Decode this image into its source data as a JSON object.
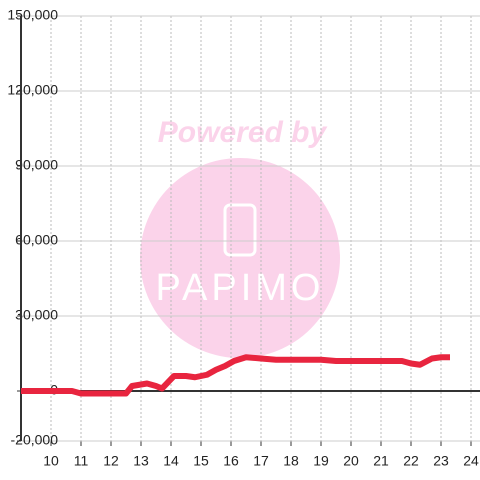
{
  "chart_data": {
    "type": "line",
    "x": [
      9,
      10.7,
      11,
      12.5,
      12.7,
      13.2,
      13.5,
      13.7,
      14.1,
      14.5,
      14.8,
      15.2,
      15.5,
      15.8,
      16.1,
      16.5,
      17,
      17.5,
      18,
      19,
      19.5,
      20,
      21,
      21.7,
      22,
      22.3,
      22.7,
      23,
      23.3
    ],
    "values": [
      0,
      0,
      -1000,
      -1000,
      2000,
      3000,
      2000,
      1000,
      6000,
      6000,
      5500,
      6500,
      8500,
      10000,
      12000,
      13500,
      13000,
      12500,
      12500,
      12500,
      12000,
      12000,
      12000,
      12000,
      11000,
      10500,
      13000,
      13500,
      13500
    ],
    "color": "#e8253f",
    "xlim": [
      9,
      24.3
    ],
    "xticks": [
      10,
      11,
      12,
      13,
      14,
      15,
      16,
      17,
      18,
      19,
      20,
      21,
      22,
      23,
      24
    ],
    "ylim": [
      -20000,
      150000
    ],
    "yticks": [
      {
        "value": -20000,
        "label": "-20,000"
      },
      0,
      {
        "value": 30000,
        "label": "30,000"
      },
      {
        "value": 60000,
        "label": "60,000"
      },
      {
        "value": 90000,
        "label": "90,000"
      },
      {
        "value": 120000,
        "label": "120,000"
      },
      {
        "value": 150000,
        "label": "150,000"
      }
    ],
    "grid": true,
    "watermark": {
      "text": "Powered by",
      "logo": "PAPIMO"
    }
  }
}
